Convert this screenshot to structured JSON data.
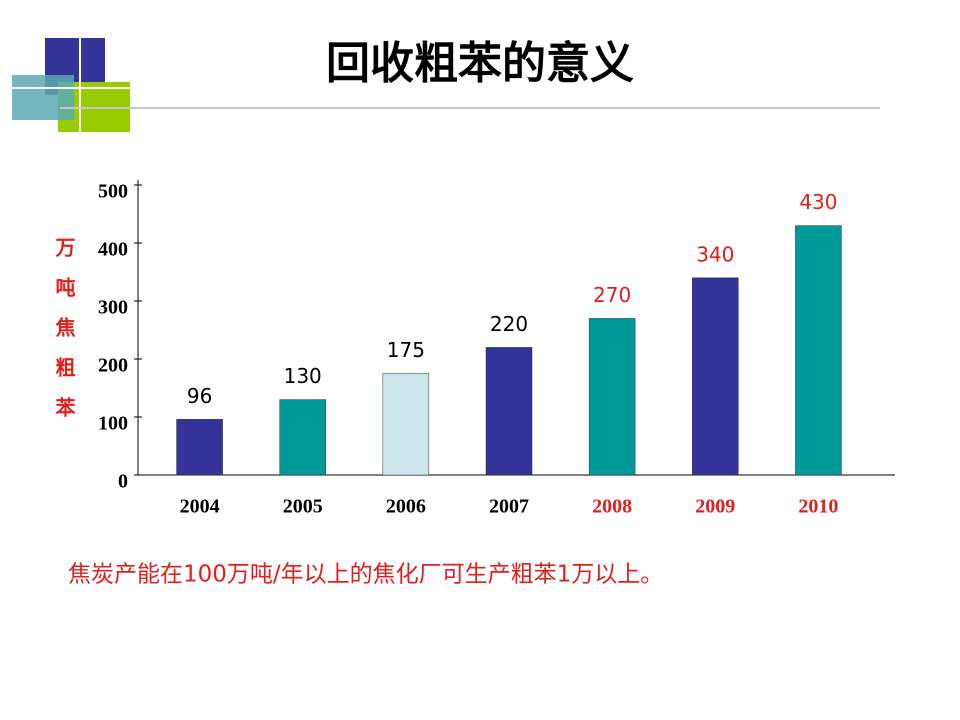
{
  "chart_data": {
    "type": "bar",
    "title": "回收粗苯的意义",
    "y_label": "万吨焦粗苯",
    "categories": [
      "2004",
      "2005",
      "2006",
      "2007",
      "2008",
      "2009",
      "2010"
    ],
    "values": [
      96,
      130,
      175,
      220,
      270,
      340,
      430
    ],
    "colors": [
      "#333399",
      "#009999",
      "#cce8ec",
      "#333399",
      "#009999",
      "#333399",
      "#009999"
    ],
    "label_colors": [
      "#000000",
      "#000000",
      "#000000",
      "#000000",
      "#e0201c",
      "#e0201c",
      "#e0201c"
    ],
    "ylim": [
      0,
      500
    ],
    "yticks": [
      0,
      100,
      200,
      300,
      400,
      500
    ],
    "grid": false,
    "note": "焦炭产能在100万吨/年以上的焦化厂可生产粗苯1万以上。"
  }
}
